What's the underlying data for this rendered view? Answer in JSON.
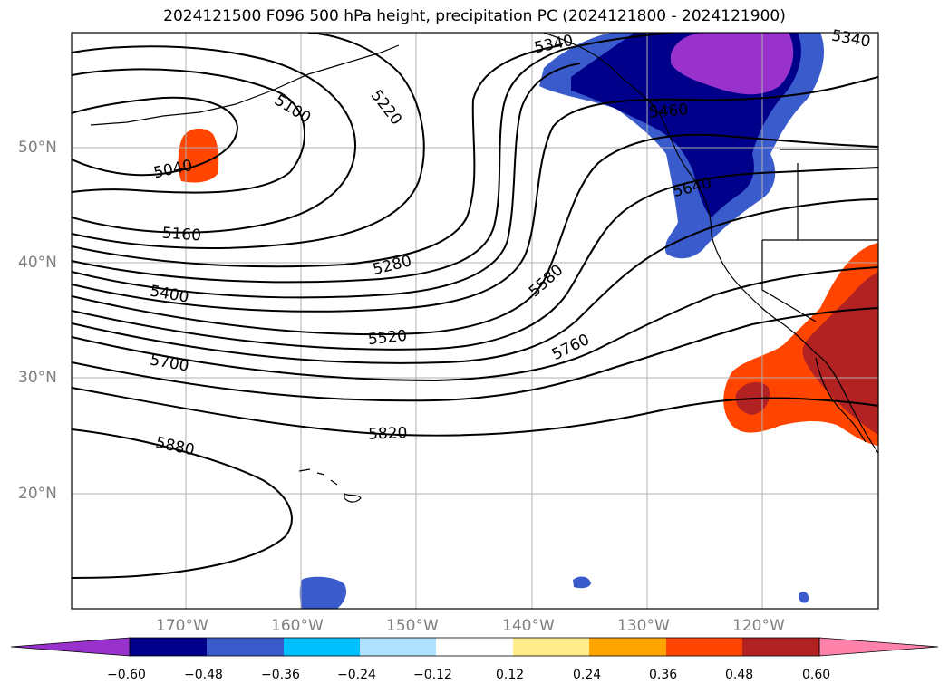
{
  "title": "2024121500 F096 500 hPa height, precipitation PC (2024121800 - 2024121900)",
  "lat_labels": [
    "50°N",
    "40°N",
    "30°N",
    "20°N"
  ],
  "lon_labels": [
    "170°W",
    "160°W",
    "150°W",
    "140°W",
    "130°W",
    "120°W"
  ],
  "contour_labels": [
    "5040",
    "5100",
    "5160",
    "5220",
    "5280",
    "5340",
    "5340",
    "5400",
    "5460",
    "5520",
    "5580",
    "5640",
    "5700",
    "5760",
    "5820",
    "5880"
  ],
  "colorbar": {
    "ticks": [
      "−0.60",
      "−0.48",
      "−0.36",
      "−0.24",
      "−0.12",
      "0.12",
      "0.24",
      "0.36",
      "0.48",
      "0.60"
    ],
    "colors": [
      "#9932cc",
      "#00008b",
      "#3a5bcc",
      "#00bfff",
      "#b0e2ff",
      "#ffffff",
      "#ffec8b",
      "#ffa500",
      "#ff4500",
      "#b22222",
      "#ff82ab"
    ]
  },
  "colors": {
    "contour": "#000000",
    "grid": "#b0b0b0",
    "label_gray": "#808080"
  }
}
